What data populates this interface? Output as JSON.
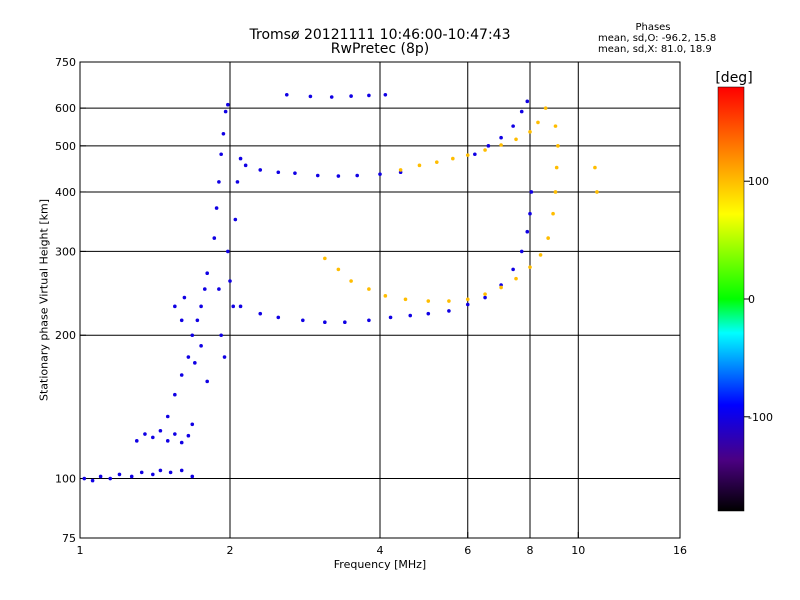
{
  "header": {
    "title_line1": "Tromsø 20121111 10:46:00-10:47:43",
    "title_line2": "RwPretec (8p)",
    "stats_heading": "Phases",
    "stats_o": "mean, sd,O: -96.2, 15.8",
    "stats_x": "mean, sd,X: 81.0, 18.9"
  },
  "colorbar": {
    "unit": "[deg]",
    "ticks": [
      100,
      0,
      -100
    ],
    "tick_labels": [
      "100",
      "0",
      "-100"
    ],
    "range": [
      -180,
      180
    ]
  },
  "chart_data": {
    "type": "scatter",
    "xlabel": "Frequency [MHz]",
    "ylabel": "Stationary phase Virtual Height [km]",
    "x_scale": "log",
    "y_scale": "log",
    "xlim": [
      1,
      16
    ],
    "ylim": [
      75,
      750
    ],
    "x_ticks": [
      1,
      2,
      4,
      6,
      8,
      10,
      16
    ],
    "x_tick_labels": [
      "1",
      "2",
      "4",
      "6",
      "8",
      "10",
      "16"
    ],
    "y_ticks": [
      75,
      100,
      200,
      300,
      400,
      500,
      600,
      750
    ],
    "y_tick_labels": [
      "75",
      "100",
      "200",
      "300",
      "400",
      "500",
      "600",
      "750"
    ],
    "grid_x": [
      2,
      4,
      6,
      8,
      10
    ],
    "grid_y": [
      100,
      200,
      300,
      400,
      500,
      600
    ],
    "series": [
      {
        "color_value": -100,
        "points": [
          [
            1.02,
            100
          ],
          [
            1.06,
            99
          ],
          [
            1.1,
            101
          ],
          [
            1.15,
            100
          ],
          [
            1.2,
            102
          ],
          [
            1.27,
            101
          ],
          [
            1.33,
            103
          ],
          [
            1.4,
            102
          ],
          [
            1.45,
            104
          ],
          [
            1.52,
            103
          ],
          [
            1.6,
            104
          ],
          [
            1.68,
            101
          ],
          [
            1.3,
            120
          ],
          [
            1.35,
            124
          ],
          [
            1.4,
            122
          ],
          [
            1.45,
            126
          ],
          [
            1.5,
            120
          ],
          [
            1.55,
            124
          ],
          [
            1.6,
            119
          ],
          [
            1.65,
            123
          ],
          [
            1.68,
            130
          ],
          [
            1.5,
            135
          ],
          [
            1.55,
            150
          ],
          [
            1.6,
            165
          ],
          [
            1.65,
            180
          ],
          [
            1.68,
            200
          ],
          [
            1.72,
            215
          ],
          [
            1.75,
            230
          ],
          [
            1.78,
            250
          ],
          [
            1.8,
            270
          ],
          [
            1.55,
            230
          ],
          [
            1.6,
            215
          ],
          [
            1.62,
            240
          ],
          [
            1.7,
            175
          ],
          [
            1.75,
            190
          ],
          [
            1.8,
            160
          ],
          [
            1.86,
            320
          ],
          [
            1.88,
            370
          ],
          [
            1.9,
            420
          ],
          [
            1.92,
            480
          ],
          [
            1.94,
            530
          ],
          [
            1.96,
            590
          ],
          [
            1.98,
            610
          ],
          [
            1.9,
            250
          ],
          [
            1.92,
            200
          ],
          [
            1.95,
            180
          ],
          [
            1.98,
            300
          ],
          [
            2.0,
            260
          ],
          [
            2.03,
            230
          ],
          [
            2.05,
            350
          ],
          [
            2.07,
            420
          ],
          [
            2.1,
            470
          ],
          [
            2.15,
            455
          ],
          [
            2.3,
            445
          ],
          [
            2.5,
            440
          ],
          [
            2.7,
            438
          ],
          [
            3.0,
            433
          ],
          [
            3.3,
            432
          ],
          [
            3.6,
            433
          ],
          [
            4.0,
            436
          ],
          [
            4.4,
            440
          ],
          [
            2.1,
            230
          ],
          [
            2.3,
            222
          ],
          [
            2.5,
            218
          ],
          [
            2.8,
            215
          ],
          [
            3.1,
            213
          ],
          [
            3.4,
            213
          ],
          [
            3.8,
            215
          ],
          [
            4.2,
            218
          ],
          [
            4.6,
            220
          ],
          [
            5.0,
            222
          ],
          [
            5.5,
            225
          ],
          [
            6.0,
            232
          ],
          [
            6.5,
            240
          ],
          [
            7.0,
            255
          ],
          [
            7.4,
            275
          ],
          [
            7.7,
            300
          ],
          [
            7.9,
            330
          ],
          [
            8.0,
            360
          ],
          [
            8.05,
            400
          ],
          [
            2.6,
            640
          ],
          [
            2.9,
            635
          ],
          [
            3.2,
            633
          ],
          [
            3.5,
            636
          ],
          [
            3.8,
            638
          ],
          [
            4.1,
            640
          ],
          [
            6.2,
            480
          ],
          [
            6.6,
            500
          ],
          [
            7.0,
            520
          ],
          [
            7.4,
            550
          ],
          [
            7.7,
            590
          ],
          [
            7.9,
            620
          ]
        ]
      },
      {
        "color_value": 100,
        "points": [
          [
            3.1,
            290
          ],
          [
            3.3,
            275
          ],
          [
            3.5,
            260
          ],
          [
            3.8,
            250
          ],
          [
            4.1,
            242
          ],
          [
            4.5,
            238
          ],
          [
            5.0,
            236
          ],
          [
            5.5,
            236
          ],
          [
            6.0,
            238
          ],
          [
            6.5,
            244
          ],
          [
            7.0,
            252
          ],
          [
            7.5,
            263
          ],
          [
            8.0,
            278
          ],
          [
            8.4,
            295
          ],
          [
            8.7,
            320
          ],
          [
            8.9,
            360
          ],
          [
            9.0,
            400
          ],
          [
            9.05,
            450
          ],
          [
            9.1,
            500
          ],
          [
            9.0,
            550
          ],
          [
            4.4,
            445
          ],
          [
            4.8,
            455
          ],
          [
            5.2,
            462
          ],
          [
            5.6,
            470
          ],
          [
            6.0,
            478
          ],
          [
            6.5,
            490
          ],
          [
            7.0,
            502
          ],
          [
            7.5,
            516
          ],
          [
            8.0,
            535
          ],
          [
            8.3,
            560
          ],
          [
            8.6,
            600
          ],
          [
            10.8,
            450
          ],
          [
            10.9,
            400
          ]
        ]
      }
    ]
  }
}
